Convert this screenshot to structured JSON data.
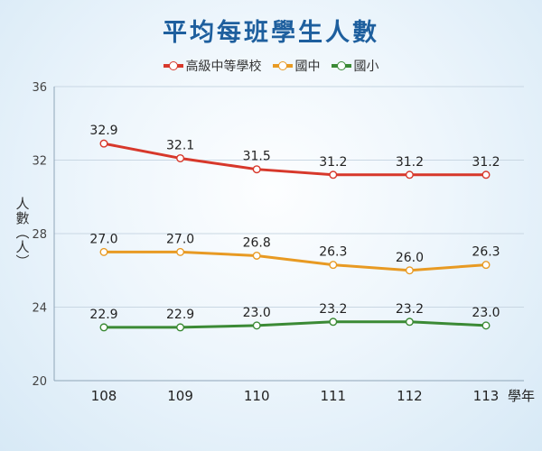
{
  "chart_data": {
    "type": "line",
    "title": "平均每班學生人數",
    "ylabel": "人數（人）",
    "xlabel": "學年",
    "categories": [
      "108",
      "109",
      "110",
      "111",
      "112",
      "113"
    ],
    "ylim": [
      20,
      36
    ],
    "yticks": [
      "20",
      "24",
      "28",
      "32",
      "36"
    ],
    "grid": "horizontal",
    "legend_position": "top-center",
    "series": [
      {
        "name": "高級中等學校",
        "color": "#d7382b",
        "values": [
          32.9,
          32.1,
          31.5,
          31.2,
          31.2,
          31.2
        ]
      },
      {
        "name": "國中",
        "color": "#e89a23",
        "values": [
          27.0,
          27.0,
          26.8,
          26.3,
          26.0,
          26.3
        ]
      },
      {
        "name": "國小",
        "color": "#3b8a35",
        "values": [
          22.9,
          22.9,
          23.0,
          23.2,
          23.2,
          23.0
        ]
      }
    ]
  }
}
